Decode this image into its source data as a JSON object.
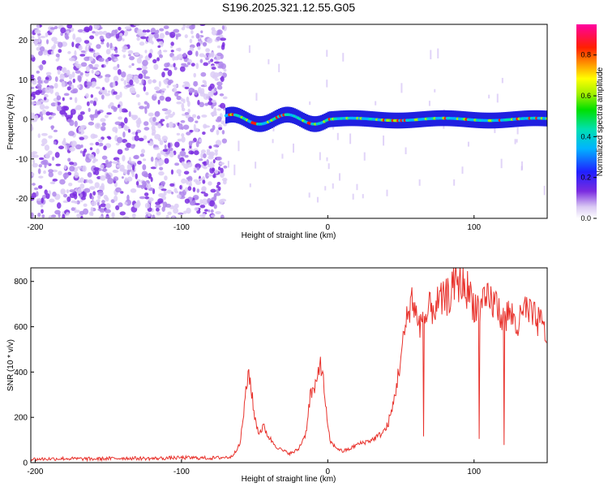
{
  "title": "S196.2025.321.12.55.G05",
  "colors": {
    "snr_line": "#e8322c",
    "spectrum_base": "#7a2be0",
    "axis": "#000000"
  },
  "chart_data": [
    {
      "type": "heatmap",
      "title": "S196.2025.321.12.55.G05",
      "xlabel": "Height of straight line (km)",
      "ylabel": "Frequency (Hz)",
      "xlim": [
        -203,
        150
      ],
      "ylim": [
        -25,
        24
      ],
      "xticks": [
        "-200",
        "-100",
        "0",
        "100"
      ],
      "yticks": [
        "20",
        "10",
        "0",
        "-10",
        "-20"
      ],
      "noise_region_x": [
        -203,
        -70
      ],
      "signal_band_center_hz": 0,
      "signal_band_halfwidth_hz": 2,
      "signal_start_x": -70,
      "colorbar": {
        "label": "Normalized spectral amplitude",
        "range": [
          0.0,
          0.95
        ],
        "ticks": [
          "0.0",
          "0.2",
          "0.4",
          "0.6",
          "0.8"
        ],
        "colormap": "rainbow (white-violet-blue-cyan-green-yellow-red-magenta)"
      },
      "grid": false
    },
    {
      "type": "line",
      "xlabel": "Height of straight line (km)",
      "ylabel": "SNR (10 * v/v)",
      "xlim": [
        -203,
        150
      ],
      "ylim": [
        0,
        860
      ],
      "xticks": [
        "-200",
        "-100",
        "0",
        "100"
      ],
      "yticks": [
        "0",
        "200",
        "400",
        "600",
        "800"
      ],
      "grid": false,
      "series": [
        {
          "x": [
            -203,
            -180,
            -160,
            -140,
            -120,
            -100,
            -80,
            -66,
            -60,
            -57,
            -54,
            -50,
            -47,
            -44,
            -40,
            -35,
            -30,
            -25,
            -20,
            -15,
            -12,
            -8,
            -5,
            -2,
            0,
            2,
            5,
            10,
            15,
            20,
            25,
            30,
            35,
            40,
            44,
            48,
            52,
            56,
            58,
            60,
            65,
            70,
            75,
            80,
            85,
            88,
            92,
            96,
            100,
            105,
            110,
            115,
            120,
            125,
            130,
            135,
            140,
            145,
            150
          ],
          "y": [
            15,
            18,
            16,
            20,
            18,
            22,
            20,
            25,
            80,
            250,
            410,
            200,
            130,
            160,
            110,
            70,
            50,
            40,
            60,
            130,
            300,
            330,
            460,
            300,
            150,
            90,
            70,
            50,
            60,
            80,
            90,
            100,
            120,
            150,
            230,
            380,
            550,
            700,
            730,
            650,
            600,
            680,
            700,
            720,
            760,
            800,
            790,
            760,
            700,
            680,
            720,
            700,
            640,
            660,
            600,
            680,
            640,
            620,
            560
          ]
        }
      ]
    }
  ]
}
